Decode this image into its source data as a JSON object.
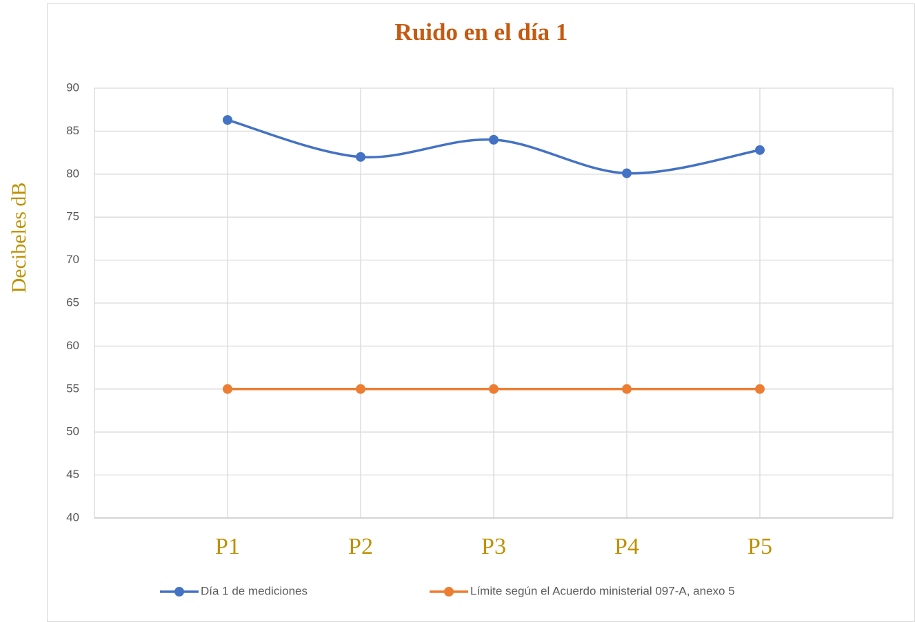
{
  "chart_data": {
    "type": "line",
    "title": "Ruido en el día 1",
    "y_label": "Decibeles dB",
    "categories": [
      "P1",
      "P2",
      "P3",
      "P4",
      "P5"
    ],
    "series": [
      {
        "name": "Día 1 de mediciones",
        "color": "#4472c4",
        "values": [
          86.3,
          82,
          84,
          80.1,
          82.8
        ]
      },
      {
        "name": "Límite según el Acuerdo ministerial 097-A, anexo 5",
        "color": "#ed7d31",
        "values": [
          55,
          55,
          55,
          55,
          55
        ]
      }
    ],
    "ylim": [
      40,
      90
    ],
    "yticks": [
      40,
      45,
      50,
      55,
      60,
      65,
      70,
      75,
      80,
      85,
      90
    ],
    "grid": true,
    "smooth": true,
    "legend": "bottom"
  }
}
